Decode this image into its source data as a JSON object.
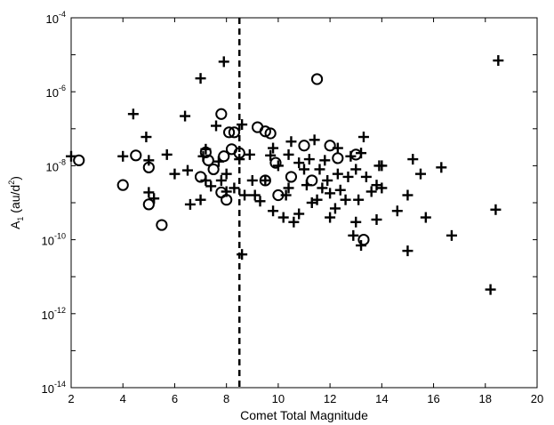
{
  "chart_data": {
    "type": "scatter",
    "xlabel": "Comet Total Magnitude",
    "ylabel": "A",
    "ylabel_sub": "1",
    "ylabel_units_open": " (au/d",
    "ylabel_units_sup": "2",
    "ylabel_units_close": ")",
    "xlim": [
      2,
      20
    ],
    "ylim": [
      1e-14,
      0.0001
    ],
    "yscale": "log",
    "grid": false,
    "xticks": [
      2,
      4,
      6,
      8,
      10,
      12,
      14,
      16,
      18,
      20
    ],
    "xtick_labels": [
      "2",
      "4",
      "6",
      "8",
      "10",
      "12",
      "14",
      "16",
      "18",
      "20"
    ],
    "yticks": [
      {
        "base": "10",
        "exp": "-14",
        "value": 1e-14
      },
      {
        "base": "10",
        "exp": "-12",
        "value": 1e-12
      },
      {
        "base": "10",
        "exp": "-10",
        "value": 1e-10
      },
      {
        "base": "10",
        "exp": "-8",
        "value": 1e-08
      },
      {
        "base": "10",
        "exp": "-6",
        "value": 1e-06
      },
      {
        "base": "10",
        "exp": "-4",
        "value": 0.0001
      }
    ],
    "reference_line": {
      "x": 8.5,
      "style": "dashed"
    },
    "series": [
      {
        "marker": "plus",
        "points": [
          [
            2.0,
            1.8e-08
          ],
          [
            4.0,
            1.8e-08
          ],
          [
            4.4,
            2.5e-07
          ],
          [
            4.9,
            6e-08
          ],
          [
            5.0,
            1.9e-09
          ],
          [
            5.2,
            1.3e-09
          ],
          [
            5.0,
            1.4e-08
          ],
          [
            5.7,
            2e-08
          ],
          [
            6.0,
            6e-09
          ],
          [
            6.4,
            2.2e-07
          ],
          [
            6.5,
            7.5e-09
          ],
          [
            6.6,
            9e-10
          ],
          [
            7.0,
            2.3e-06
          ],
          [
            7.0,
            1.2e-09
          ],
          [
            7.1,
            1.8e-08
          ],
          [
            7.2,
            2.8e-08
          ],
          [
            7.2,
            4e-09
          ],
          [
            7.4,
            2.8e-09
          ],
          [
            7.6,
            1.2e-07
          ],
          [
            7.7,
            1.3e-08
          ],
          [
            7.8,
            4e-09
          ],
          [
            7.9,
            6.5e-06
          ],
          [
            8.0,
            2e-09
          ],
          [
            8.0,
            6e-09
          ],
          [
            8.3,
            2.5e-09
          ],
          [
            8.5,
            1.5e-08
          ],
          [
            8.6,
            1.3e-07
          ],
          [
            8.6,
            4e-11
          ],
          [
            8.7,
            1.6e-09
          ],
          [
            8.9,
            2e-08
          ],
          [
            9.0,
            4e-09
          ],
          [
            9.1,
            1.6e-09
          ],
          [
            9.3,
            1.1e-09
          ],
          [
            9.5,
            4e-09
          ],
          [
            9.7,
            1.9e-08
          ],
          [
            9.8,
            3e-08
          ],
          [
            9.8,
            6e-10
          ],
          [
            10.0,
            1e-08
          ],
          [
            10.2,
            4e-10
          ],
          [
            10.3,
            1.6e-09
          ],
          [
            10.4,
            2.5e-09
          ],
          [
            10.4,
            2e-08
          ],
          [
            10.5,
            4.5e-08
          ],
          [
            10.6,
            3e-10
          ],
          [
            10.8,
            1.2e-08
          ],
          [
            10.8,
            5e-10
          ],
          [
            11.0,
            8e-09
          ],
          [
            11.1,
            3e-09
          ],
          [
            11.2,
            1.5e-08
          ],
          [
            11.3,
            1e-09
          ],
          [
            11.4,
            5e-08
          ],
          [
            11.5,
            1.2e-09
          ],
          [
            11.6,
            8e-09
          ],
          [
            11.7,
            2.5e-09
          ],
          [
            11.8,
            1.4e-08
          ],
          [
            11.9,
            4e-09
          ],
          [
            12.0,
            1.8e-09
          ],
          [
            12.0,
            4e-10
          ],
          [
            12.2,
            7e-10
          ],
          [
            12.3,
            3e-08
          ],
          [
            12.3,
            6e-09
          ],
          [
            12.4,
            2.2e-09
          ],
          [
            12.6,
            1.2e-09
          ],
          [
            12.7,
            5e-09
          ],
          [
            12.8,
            1.8e-08
          ],
          [
            12.9,
            1.3e-10
          ],
          [
            13.0,
            3e-10
          ],
          [
            13.0,
            8e-09
          ],
          [
            13.1,
            1.2e-09
          ],
          [
            13.2,
            2.2e-08
          ],
          [
            13.2,
            7e-11
          ],
          [
            13.3,
            6e-08
          ],
          [
            13.4,
            5e-09
          ],
          [
            13.6,
            2e-09
          ],
          [
            13.8,
            3e-09
          ],
          [
            13.8,
            3.5e-10
          ],
          [
            13.9,
            1e-08
          ],
          [
            14.0,
            1e-08
          ],
          [
            14.0,
            2.5e-09
          ],
          [
            14.6,
            6e-10
          ],
          [
            15.0,
            1.6e-09
          ],
          [
            15.2,
            1.5e-08
          ],
          [
            15.5,
            6e-09
          ],
          [
            15.0,
            5e-11
          ],
          [
            15.7,
            4e-10
          ],
          [
            16.3,
            9e-09
          ],
          [
            16.7,
            1.3e-10
          ],
          [
            18.2,
            4.5e-12
          ],
          [
            18.4,
            6.5e-10
          ],
          [
            18.5,
            7e-06
          ]
        ]
      },
      {
        "marker": "circle",
        "points": [
          [
            2.3,
            1.4e-08
          ],
          [
            4.0,
            3e-09
          ],
          [
            4.5,
            1.9e-08
          ],
          [
            5.0,
            9e-09
          ],
          [
            5.0,
            9e-10
          ],
          [
            5.5,
            2.5e-10
          ],
          [
            7.0,
            5e-09
          ],
          [
            7.2,
            2.3e-08
          ],
          [
            7.3,
            1.4e-08
          ],
          [
            7.5,
            8e-09
          ],
          [
            7.8,
            2.5e-07
          ],
          [
            7.8,
            1.9e-09
          ],
          [
            7.9,
            1.8e-08
          ],
          [
            8.0,
            1.2e-09
          ],
          [
            8.1,
            8e-08
          ],
          [
            8.3,
            8e-08
          ],
          [
            8.2,
            2.8e-08
          ],
          [
            8.5,
            2.2e-08
          ],
          [
            9.2,
            1.1e-07
          ],
          [
            9.5,
            8.5e-08
          ],
          [
            9.7,
            7.5e-08
          ],
          [
            9.5,
            4e-09
          ],
          [
            9.9,
            1.2e-08
          ],
          [
            10.0,
            1.6e-09
          ],
          [
            10.5,
            5e-09
          ],
          [
            11.0,
            3.5e-08
          ],
          [
            11.3,
            4e-09
          ],
          [
            11.5,
            2.2e-06
          ],
          [
            12.0,
            3.5e-08
          ],
          [
            12.3,
            1.6e-08
          ],
          [
            13.0,
            2e-08
          ],
          [
            13.3,
            1e-10
          ]
        ]
      }
    ]
  }
}
